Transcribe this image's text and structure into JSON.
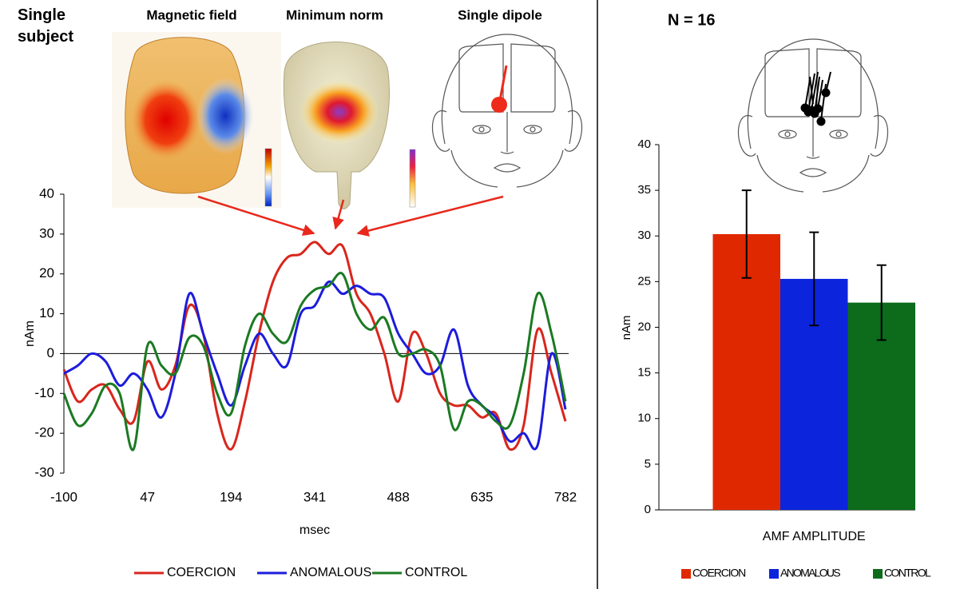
{
  "header": {
    "title": "Single subject",
    "panels": [
      "Magnetic field",
      "Minimum norm",
      "Single dipole"
    ],
    "group_title": "N = 16"
  },
  "chart_data": [
    {
      "type": "line",
      "x": [
        -100,
        -75.5,
        -51,
        -26.5,
        -2,
        22.5,
        47,
        71.5,
        96,
        120.5,
        145,
        169.5,
        194,
        218.5,
        243,
        267.5,
        292,
        316.5,
        341,
        365.5,
        390,
        414.5,
        439,
        463.5,
        488,
        512.5,
        537,
        561.5,
        586,
        610.5,
        635,
        659.5,
        684,
        708.5,
        733,
        757.5,
        782
      ],
      "series": [
        {
          "name": "COERCION",
          "color": "#d9261c",
          "values": [
            -4,
            -12,
            -9,
            -8,
            -14,
            -17,
            -2,
            -9,
            -3,
            12,
            5,
            -15,
            -24,
            -12,
            5,
            18,
            24,
            25,
            28,
            25,
            27,
            15,
            10,
            0,
            -12,
            5,
            0,
            -10,
            -13,
            -13,
            -16,
            -15,
            -24,
            -18,
            6,
            -5,
            -17
          ]
        },
        {
          "name": "ANOMALOUS",
          "color": "#1c1cdc",
          "values": [
            -5,
            -3,
            0,
            -2,
            -8,
            -5,
            -9,
            -16,
            -5,
            15,
            5,
            -5,
            -13,
            -3,
            5,
            0,
            -3,
            10,
            12,
            18,
            15,
            17,
            15,
            14,
            5,
            0,
            -5,
            -3,
            6,
            -8,
            -13,
            -16,
            -22,
            -20,
            -23,
            0,
            -14
          ]
        },
        {
          "name": "CONTROL",
          "color": "#1b7a22",
          "values": [
            -10,
            -18,
            -15,
            -8,
            -10,
            -24,
            2,
            -3,
            -5,
            4,
            2,
            -10,
            -15,
            2,
            10,
            5,
            3,
            12,
            16,
            17,
            20,
            10,
            6,
            9,
            0,
            0,
            1,
            -3,
            -19,
            -12,
            -13,
            -17,
            -18,
            -5,
            15,
            5,
            -12
          ]
        }
      ],
      "xlim": [
        -100,
        782
      ],
      "ylim": [
        -30,
        40
      ],
      "xticks": [
        -100,
        47,
        194,
        341,
        488,
        635,
        782
      ],
      "yticks": [
        -30,
        -20,
        -10,
        0,
        10,
        20,
        30,
        40
      ],
      "xlabel": "msec",
      "ylabel": "nAm"
    },
    {
      "type": "bar",
      "categories": [
        "AMF AMPLITUDE"
      ],
      "series": [
        {
          "name": "COERCION",
          "color": "#e02800",
          "values": [
            30.2
          ],
          "errors": [
            4.8
          ]
        },
        {
          "name": "ANOMALOUS",
          "color": "#0c24dc",
          "values": [
            25.3
          ],
          "errors": [
            5.1
          ]
        },
        {
          "name": "CONTROL",
          "color": "#0d6b1c",
          "values": [
            22.7
          ],
          "errors": [
            4.1
          ]
        }
      ],
      "ylim": [
        0,
        40
      ],
      "yticks": [
        0,
        5,
        10,
        15,
        20,
        25,
        30,
        35,
        40
      ],
      "ylabel": "nAm"
    }
  ]
}
